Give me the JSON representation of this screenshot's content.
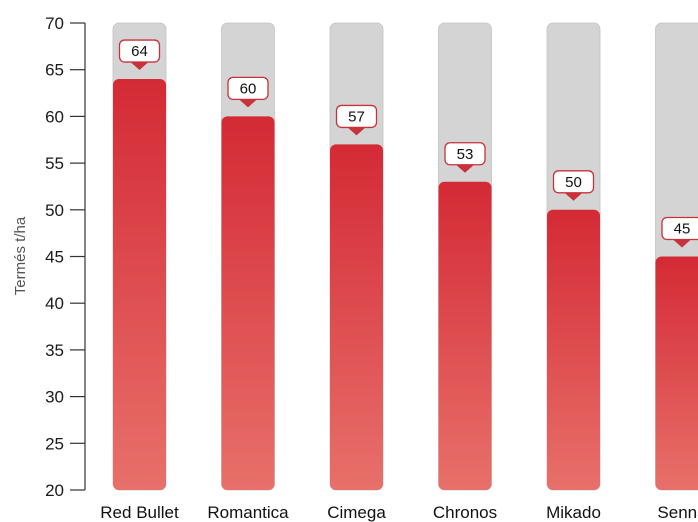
{
  "chart_data": {
    "type": "bar",
    "categories": [
      "Red Bullet",
      "Romantica",
      "Cimega",
      "Chronos",
      "Mikado",
      "Senna"
    ],
    "values": [
      64,
      60,
      57,
      53,
      50,
      45
    ],
    "ylabel": "Termés t/ha",
    "ylim": [
      20,
      70
    ],
    "yticks": [
      20,
      25,
      30,
      35,
      40,
      45,
      50,
      55,
      60,
      65,
      70
    ],
    "grid": false,
    "data_labels": true,
    "colors": {
      "bar_top": "#d42a35",
      "bar_bottom": "#e8706a",
      "track": "#d4d4d4",
      "track_border": "#c2c2c2",
      "label_border": "#c8323a",
      "axis": "#333333"
    }
  }
}
